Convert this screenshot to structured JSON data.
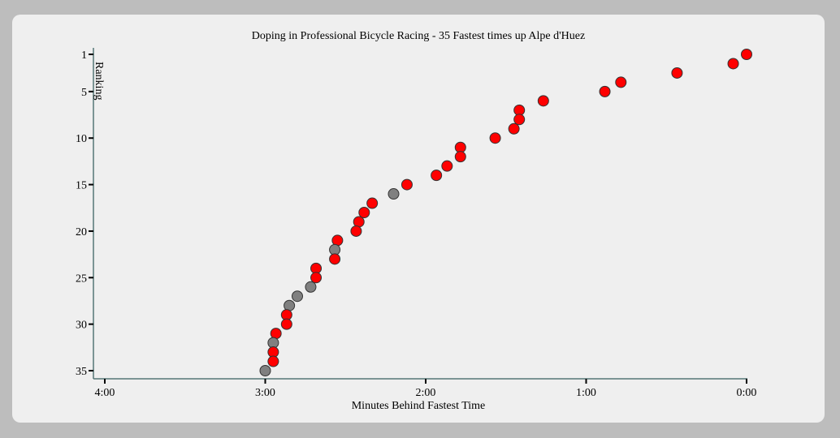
{
  "chart_data": {
    "type": "scatter",
    "title": "Doping in Professional Bicycle Racing - 35 Fastest times up Alpe d'Huez",
    "xlabel": "Minutes Behind Fastest Time",
    "ylabel": "Ranking",
    "x_unit": "seconds behind fastest time",
    "xlim": [
      240,
      0
    ],
    "ylim": [
      1,
      35
    ],
    "x_ticks": [
      {
        "value": 240,
        "label": "4:00"
      },
      {
        "value": 180,
        "label": "3:00"
      },
      {
        "value": 120,
        "label": "2:00"
      },
      {
        "value": 60,
        "label": "1:00"
      },
      {
        "value": 0,
        "label": "0:00"
      }
    ],
    "y_ticks": [
      {
        "value": 1,
        "label": "1"
      },
      {
        "value": 5,
        "label": "5"
      },
      {
        "value": 10,
        "label": "10"
      },
      {
        "value": 15,
        "label": "15"
      },
      {
        "value": 20,
        "label": "20"
      },
      {
        "value": 25,
        "label": "25"
      },
      {
        "value": 30,
        "label": "30"
      },
      {
        "value": 35,
        "label": "35"
      }
    ],
    "colors": {
      "red": "#ff0000",
      "gray": "#808080",
      "axis": "#557777"
    },
    "points": [
      {
        "x": 0,
        "y": 1,
        "color": "red"
      },
      {
        "x": 5,
        "y": 2,
        "color": "red"
      },
      {
        "x": 26,
        "y": 3,
        "color": "red"
      },
      {
        "x": 47,
        "y": 4,
        "color": "red"
      },
      {
        "x": 53,
        "y": 5,
        "color": "red"
      },
      {
        "x": 76,
        "y": 6,
        "color": "red"
      },
      {
        "x": 85,
        "y": 7,
        "color": "red"
      },
      {
        "x": 85,
        "y": 8,
        "color": "red"
      },
      {
        "x": 87,
        "y": 9,
        "color": "red"
      },
      {
        "x": 94,
        "y": 10,
        "color": "red"
      },
      {
        "x": 107,
        "y": 11,
        "color": "red"
      },
      {
        "x": 107,
        "y": 12,
        "color": "red"
      },
      {
        "x": 112,
        "y": 13,
        "color": "red"
      },
      {
        "x": 116,
        "y": 14,
        "color": "red"
      },
      {
        "x": 127,
        "y": 15,
        "color": "red"
      },
      {
        "x": 132,
        "y": 16,
        "color": "gray"
      },
      {
        "x": 140,
        "y": 17,
        "color": "red"
      },
      {
        "x": 143,
        "y": 18,
        "color": "red"
      },
      {
        "x": 145,
        "y": 19,
        "color": "red"
      },
      {
        "x": 146,
        "y": 20,
        "color": "red"
      },
      {
        "x": 153,
        "y": 21,
        "color": "red"
      },
      {
        "x": 154,
        "y": 22,
        "color": "gray"
      },
      {
        "x": 154,
        "y": 23,
        "color": "red"
      },
      {
        "x": 161,
        "y": 24,
        "color": "red"
      },
      {
        "x": 161,
        "y": 25,
        "color": "red"
      },
      {
        "x": 163,
        "y": 26,
        "color": "gray"
      },
      {
        "x": 168,
        "y": 27,
        "color": "gray"
      },
      {
        "x": 171,
        "y": 28,
        "color": "gray"
      },
      {
        "x": 172,
        "y": 29,
        "color": "red"
      },
      {
        "x": 172,
        "y": 30,
        "color": "red"
      },
      {
        "x": 176,
        "y": 31,
        "color": "red"
      },
      {
        "x": 177,
        "y": 32,
        "color": "gray"
      },
      {
        "x": 177,
        "y": 33,
        "color": "red"
      },
      {
        "x": 177,
        "y": 34,
        "color": "red"
      },
      {
        "x": 180,
        "y": 35,
        "color": "gray"
      }
    ]
  }
}
